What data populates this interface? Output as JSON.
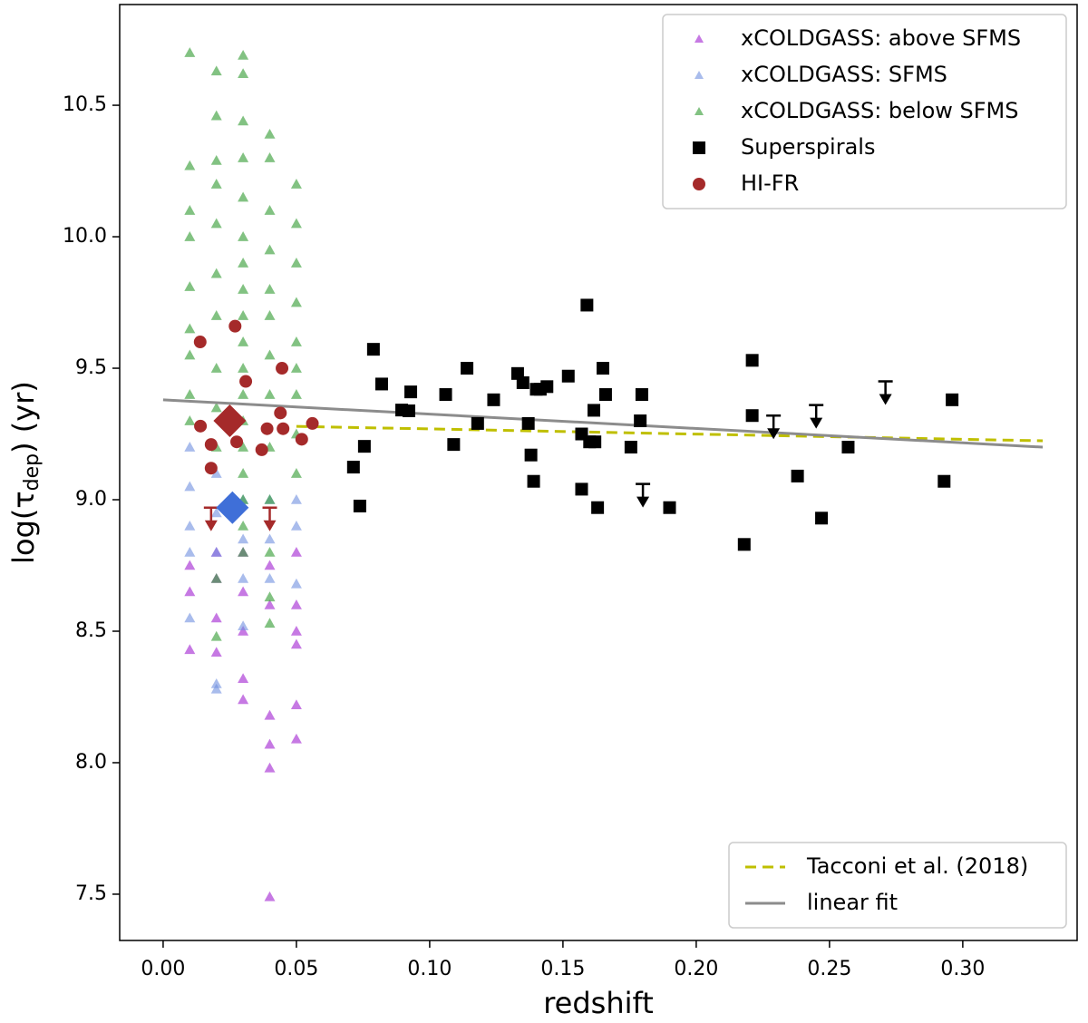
{
  "chart_data": {
    "type": "scatter",
    "xlabel": "redshift",
    "ylabel": [
      "log(τ",
      "dep",
      ") (yr)"
    ],
    "xlim": [
      -0.0163,
      0.3429
    ],
    "ylim": [
      7.324,
      10.883
    ],
    "xticks": [
      {
        "value": 0,
        "label": "0.00"
      },
      {
        "value": 0.05,
        "label": "0.05"
      },
      {
        "value": 0.1,
        "label": "0.10"
      },
      {
        "value": 0.15,
        "label": "0.15"
      },
      {
        "value": 0.2,
        "label": "0.20"
      },
      {
        "value": 0.25,
        "label": "0.25"
      },
      {
        "value": 0.3,
        "label": "0.30"
      }
    ],
    "yticks": [
      7.5,
      {
        "value": 8,
        "label": "8.0"
      },
      8.5,
      {
        "value": 9,
        "label": "9.0"
      },
      9.5,
      {
        "value": 10,
        "label": "10.0"
      },
      10.5
    ],
    "legend": "upper right",
    "line_legend": "lower right",
    "series": [
      {
        "name": "xCOLDGASS: above SFMS",
        "color": "#a020d0",
        "marker": "triangle",
        "x": [
          0.01,
          0.01,
          0.01,
          0.02,
          0.02,
          0.02,
          0.02,
          0.03,
          0.03,
          0.03,
          0.03,
          0.03,
          0.04,
          0.04,
          0.04,
          0.04,
          0.04,
          0.04,
          0.05,
          0.05,
          0.05,
          0.05,
          0.05,
          0.05
        ],
        "values": [
          8.75,
          8.65,
          8.43,
          8.8,
          8.7,
          8.55,
          8.42,
          8.8,
          8.65,
          8.5,
          8.32,
          8.24,
          8.75,
          8.6,
          8.18,
          8.07,
          7.98,
          7.49,
          8.8,
          8.6,
          8.5,
          8.45,
          8.22,
          8.09
        ]
      },
      {
        "name": "xCOLDGASS: SFMS",
        "color": "#6f8fe0",
        "marker": "triangle",
        "x": [
          0.01,
          0.01,
          0.01,
          0.01,
          0.01,
          0.02,
          0.02,
          0.02,
          0.02,
          0.02,
          0.03,
          0.03,
          0.03,
          0.03,
          0.04,
          0.04,
          0.04,
          0.05,
          0.05,
          0.05
        ],
        "values": [
          9.2,
          9.05,
          8.9,
          8.8,
          8.55,
          9.1,
          8.95,
          8.8,
          8.3,
          8.28,
          9.0,
          8.85,
          8.7,
          8.52,
          9.0,
          8.85,
          8.7,
          9.0,
          8.9,
          8.68
        ]
      },
      {
        "name": "xCOLDGASS: below SFMS",
        "color": "#2e9a2e",
        "marker": "triangle",
        "x": [
          0.01,
          0.01,
          0.01,
          0.01,
          0.01,
          0.01,
          0.01,
          0.01,
          0.01,
          0.02,
          0.02,
          0.02,
          0.02,
          0.02,
          0.02,
          0.02,
          0.02,
          0.02,
          0.02,
          0.02,
          0.02,
          0.03,
          0.03,
          0.03,
          0.03,
          0.03,
          0.03,
          0.03,
          0.03,
          0.03,
          0.03,
          0.03,
          0.03,
          0.03,
          0.03,
          0.03,
          0.03,
          0.03,
          0.03,
          0.04,
          0.04,
          0.04,
          0.04,
          0.04,
          0.04,
          0.04,
          0.04,
          0.04,
          0.04,
          0.04,
          0.04,
          0.04,
          0.05,
          0.05,
          0.05,
          0.05,
          0.05,
          0.05,
          0.05,
          0.05,
          0.05
        ],
        "values": [
          10.7,
          10.27,
          10.1,
          10.0,
          9.81,
          9.65,
          9.55,
          9.4,
          9.3,
          10.63,
          10.46,
          10.29,
          10.2,
          10.05,
          9.86,
          9.7,
          9.5,
          9.35,
          9.2,
          8.7,
          8.48,
          10.69,
          10.62,
          10.44,
          10.3,
          10.15,
          10.0,
          9.9,
          9.8,
          9.7,
          9.6,
          9.5,
          9.4,
          9.3,
          9.2,
          9.1,
          9.0,
          8.9,
          8.8,
          10.39,
          10.3,
          10.1,
          9.95,
          9.8,
          9.7,
          9.55,
          9.4,
          9.2,
          9.0,
          8.8,
          8.63,
          8.53,
          10.2,
          10.05,
          9.9,
          9.75,
          9.6,
          9.5,
          9.4,
          9.25,
          9.1
        ]
      },
      {
        "name": "Superspirals",
        "color": "#000000",
        "marker": "square",
        "x": [
          0.0714,
          0.0738,
          0.0755,
          0.0789,
          0.082,
          0.0895,
          0.0922,
          0.0929,
          0.106,
          0.109,
          0.114,
          0.118,
          0.124,
          0.133,
          0.135,
          0.137,
          0.138,
          0.139,
          0.14,
          0.1415,
          0.144,
          0.152,
          0.157,
          0.157,
          0.159,
          0.16,
          0.1616,
          0.162,
          0.163,
          0.165,
          0.166,
          0.1755,
          0.179,
          0.1796,
          0.19,
          0.218,
          0.221,
          0.221,
          0.238,
          0.247,
          0.257,
          0.293,
          0.296
        ],
        "values": [
          9.124,
          8.976,
          9.203,
          9.572,
          9.44,
          9.341,
          9.338,
          9.41,
          9.4,
          9.21,
          9.5,
          9.29,
          9.38,
          9.48,
          9.445,
          9.29,
          9.17,
          9.07,
          9.42,
          9.42,
          9.43,
          9.47,
          9.25,
          9.04,
          9.74,
          9.22,
          9.34,
          9.22,
          8.97,
          9.5,
          9.4,
          9.2,
          9.3,
          9.4,
          8.97,
          8.83,
          9.32,
          9.53,
          9.09,
          8.93,
          9.2,
          9.07,
          9.38
        ],
        "upper_limits": {
          "x": [
            0.18,
            0.229,
            0.245,
            0.271
          ],
          "values": [
            9.06,
            9.32,
            9.36,
            9.45
          ]
        }
      },
      {
        "name": "HI-FR",
        "color": "#a52a2a",
        "marker": "circle",
        "x": [
          0.0139,
          0.014,
          0.018,
          0.018,
          0.0245,
          0.027,
          0.0276,
          0.031,
          0.037,
          0.039,
          0.044,
          0.0446,
          0.045,
          0.052,
          0.056
        ],
        "values": [
          9.6,
          9.28,
          9.21,
          9.12,
          9.3,
          9.66,
          9.22,
          9.45,
          9.19,
          9.27,
          9.33,
          9.5,
          9.27,
          9.23,
          9.29
        ],
        "upper_limits": {
          "x": [
            0.018,
            0.04
          ],
          "values": [
            8.97,
            8.97
          ]
        }
      }
    ],
    "markers": [
      {
        "x": 0.025,
        "y": 9.3,
        "color": "#a52a2a"
      },
      {
        "x": 0.026,
        "y": 8.97,
        "color": "#3f6fd8"
      }
    ],
    "lines": [
      {
        "name": "Tacconi et al. (2018)",
        "color": "#bfbf00",
        "style": "dashed",
        "x": [
          0.05,
          0.33
        ],
        "y": [
          9.279,
          9.224
        ]
      },
      {
        "name": "linear fit",
        "color": "#8c8c8c",
        "style": "solid",
        "x": [
          0,
          0.33
        ],
        "y": [
          9.38,
          9.2
        ]
      }
    ]
  }
}
